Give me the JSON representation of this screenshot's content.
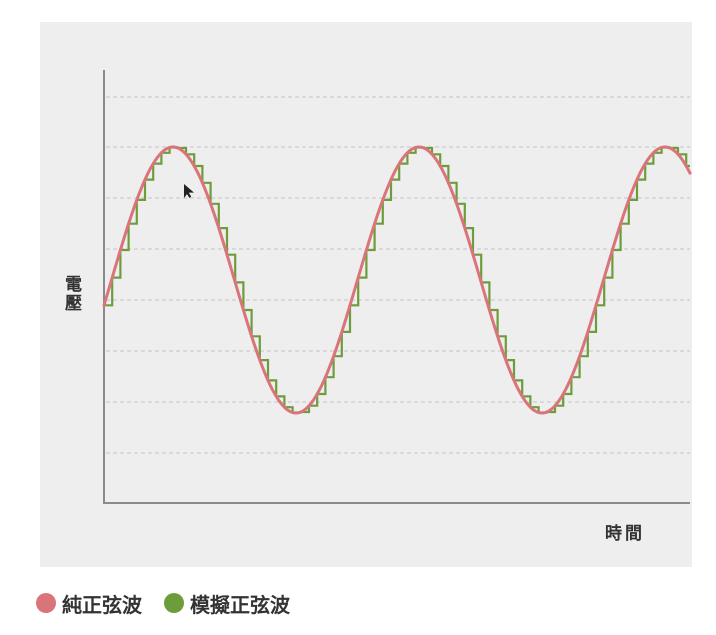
{
  "chart_data": {
    "type": "line",
    "ylabel": "電壓",
    "xlabel": "時間",
    "grid": true,
    "legend_position": "bottom-left",
    "series": [
      {
        "name": "純正弦波",
        "color": "#d9757a",
        "style": "smooth sine"
      },
      {
        "name": "模擬正弦波",
        "color": "#6d9d3a",
        "style": "stepped sine"
      }
    ]
  }
}
